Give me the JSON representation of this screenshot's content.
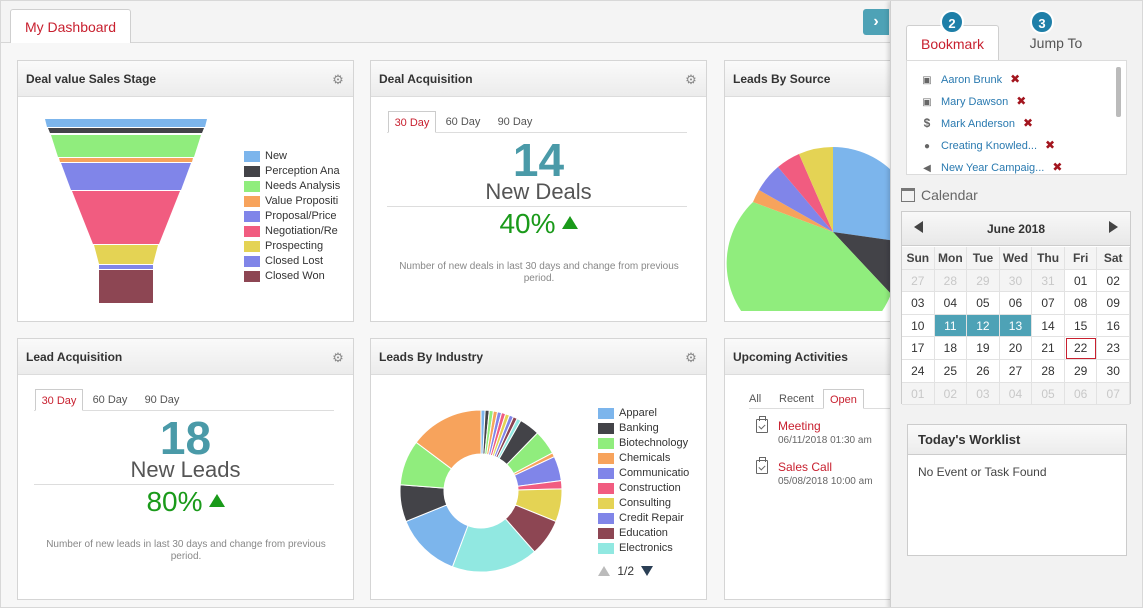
{
  "tabs": {
    "dashboard": "My Dashboard"
  },
  "widgets": {
    "deal_value": {
      "title": "Deal value Sales Stage",
      "legend": [
        {
          "label": "New",
          "color": "#7cb5ec"
        },
        {
          "label": "Perception Ana",
          "color": "#434348"
        },
        {
          "label": "Needs Analysis",
          "color": "#90ed7d"
        },
        {
          "label": "Value Propositi",
          "color": "#f7a35c"
        },
        {
          "label": "Proposal/Price",
          "color": "#8085e9"
        },
        {
          "label": "Negotiation/Re",
          "color": "#f15c80"
        },
        {
          "label": "Prospecting",
          "color": "#e4d354"
        },
        {
          "label": "Closed Lost",
          "color": "#8085e8"
        },
        {
          "label": "Closed Won",
          "color": "#8d4653"
        }
      ]
    },
    "deal_acq": {
      "title": "Deal Acquisition",
      "tabs": [
        "30 Day",
        "60 Day",
        "90 Day"
      ],
      "number": "14",
      "label": "New Deals",
      "pct": "40%",
      "note": "Number of new deals in last 30 days and change from previous period."
    },
    "leads_source": {
      "title": "Leads By Source"
    },
    "lead_acq": {
      "title": "Lead Acquisition",
      "tabs": [
        "30 Day",
        "60 Day",
        "90 Day"
      ],
      "number": "18",
      "label": "New Leads",
      "pct": "80%",
      "note": "Number of new leads in last 30 days and change from previous period."
    },
    "leads_industry": {
      "title": "Leads By Industry",
      "legend": [
        {
          "label": "Apparel",
          "color": "#7cb5ec"
        },
        {
          "label": "Banking",
          "color": "#434348"
        },
        {
          "label": "Biotechnology",
          "color": "#90ed7d"
        },
        {
          "label": "Chemicals",
          "color": "#f7a35c"
        },
        {
          "label": "Communicatio",
          "color": "#8085e9"
        },
        {
          "label": "Construction",
          "color": "#f15c80"
        },
        {
          "label": "Consulting",
          "color": "#e4d354"
        },
        {
          "label": "Credit Repair",
          "color": "#8085e8"
        },
        {
          "label": "Education",
          "color": "#8d4653"
        },
        {
          "label": "Electronics",
          "color": "#91e8e1"
        }
      ],
      "pager": "1/2"
    },
    "activities": {
      "title": "Upcoming Activities",
      "tabs": [
        "All",
        "Recent",
        "Open"
      ],
      "items": [
        {
          "title": "Meeting",
          "date": "06/11/2018 01:30 am"
        },
        {
          "title": "Sales Call",
          "date": "05/08/2018 10:00 am"
        }
      ]
    }
  },
  "panel": {
    "toggle_icon": "chevron-right-icon",
    "tabs": [
      {
        "label": "Bookmark",
        "badge": "2"
      },
      {
        "label": "Jump To",
        "badge": "3"
      }
    ],
    "bookmarks": [
      {
        "label": "Aaron Brunk",
        "icon": "contact-card-icon"
      },
      {
        "label": "Mary Dawson",
        "icon": "contact-card-icon"
      },
      {
        "label": "Mark Anderson",
        "icon": "dollar-icon"
      },
      {
        "label": "Creating Knowled...",
        "icon": "pin-icon"
      },
      {
        "label": "New Year Campaig...",
        "icon": "megaphone-icon"
      }
    ],
    "calendar": {
      "title": "Calendar",
      "month": "June 2018",
      "dow": [
        "Sun",
        "Mon",
        "Tue",
        "Wed",
        "Thu",
        "Fri",
        "Sat"
      ],
      "rows": [
        [
          "27",
          "28",
          "29",
          "30",
          "31",
          "01",
          "02"
        ],
        [
          "03",
          "04",
          "05",
          "06",
          "07",
          "08",
          "09"
        ],
        [
          "10",
          "11",
          "12",
          "13",
          "14",
          "15",
          "16"
        ],
        [
          "17",
          "18",
          "19",
          "20",
          "21",
          "22",
          "23"
        ],
        [
          "24",
          "25",
          "26",
          "27",
          "28",
          "29",
          "30"
        ],
        [
          "01",
          "02",
          "03",
          "04",
          "05",
          "06",
          "07"
        ]
      ],
      "highlighted": [
        "11",
        "12",
        "13"
      ],
      "today": "22"
    },
    "worklist": {
      "title": "Today's Worklist",
      "empty": "No Event or Task Found"
    }
  },
  "colors": {
    "accent": "#c8202f",
    "teal": "#4ea2b6",
    "green": "#1a9a1a",
    "badge": "#1e7fa8"
  }
}
